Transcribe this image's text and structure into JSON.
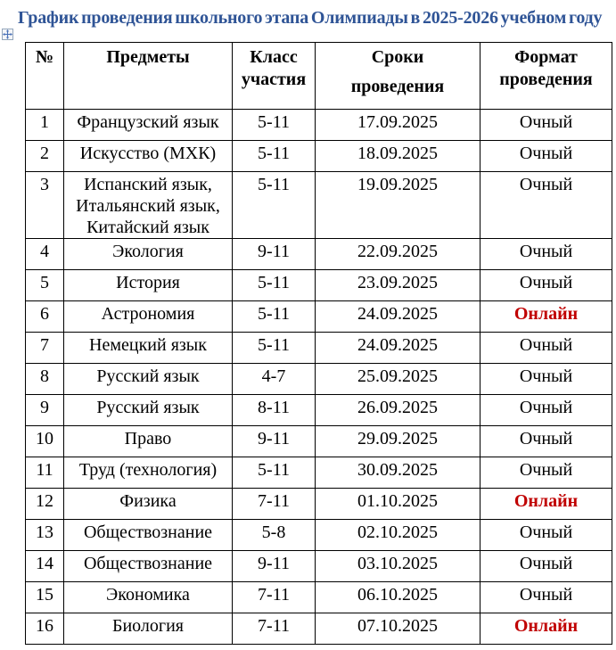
{
  "title": "График проведения школьного этапа Олимпиады в 2025-2026 учебном году",
  "colors": {
    "title_text": "#2F5496",
    "online_format": "#C00000",
    "table_border": "#000000"
  },
  "icons": {
    "table_move_handle": "four-way-move-arrows"
  },
  "table": {
    "headers": [
      "№",
      "Предметы",
      "Класс\nучастия",
      "Сроки\nпроведения",
      "Формат\nпроведения"
    ],
    "rows": [
      {
        "num": "1",
        "subject": "Французский язык",
        "grades": "5-11",
        "date": "17.09.2025",
        "format": "Очный",
        "online": false
      },
      {
        "num": "2",
        "subject": "Искусство (МХК)",
        "grades": "5-11",
        "date": "18.09.2025",
        "format": "Очный",
        "online": false
      },
      {
        "num": "3",
        "subject": "Испанский язык,\nИтальянский язык,\nКитайский язык",
        "grades": "5-11",
        "date": "19.09.2025",
        "format": "Очный",
        "online": false
      },
      {
        "num": "4",
        "subject": "Экология",
        "grades": "9-11",
        "date": "22.09.2025",
        "format": "Очный",
        "online": false
      },
      {
        "num": "5",
        "subject": "История",
        "grades": "5-11",
        "date": "23.09.2025",
        "format": "Очный",
        "online": false
      },
      {
        "num": "6",
        "subject": "Астрономия",
        "grades": "5-11",
        "date": "24.09.2025",
        "format": "Онлайн",
        "online": true
      },
      {
        "num": "7",
        "subject": "Немецкий язык",
        "grades": "5-11",
        "date": "24.09.2025",
        "format": "Очный",
        "online": false
      },
      {
        "num": "8",
        "subject": "Русский язык",
        "grades": "4-7",
        "date": "25.09.2025",
        "format": "Очный",
        "online": false
      },
      {
        "num": "9",
        "subject": "Русский язык",
        "grades": "8-11",
        "date": "26.09.2025",
        "format": "Очный",
        "online": false
      },
      {
        "num": "10",
        "subject": "Право",
        "grades": "9-11",
        "date": "29.09.2025",
        "format": "Очный",
        "online": false
      },
      {
        "num": "11",
        "subject": "Труд (технология)",
        "grades": "5-11",
        "date": "30.09.2025",
        "format": "Очный",
        "online": false
      },
      {
        "num": "12",
        "subject": "Физика",
        "grades": "7-11",
        "date": "01.10.2025",
        "format": "Онлайн",
        "online": true
      },
      {
        "num": "13",
        "subject": "Обществознание",
        "grades": "5-8",
        "date": "02.10.2025",
        "format": "Очный",
        "online": false
      },
      {
        "num": "14",
        "subject": "Обществознание",
        "grades": "9-11",
        "date": "03.10.2025",
        "format": "Очный",
        "online": false
      },
      {
        "num": "15",
        "subject": "Экономика",
        "grades": "7-11",
        "date": "06.10.2025",
        "format": "Очный",
        "online": false
      },
      {
        "num": "16",
        "subject": "Биология",
        "grades": "7-11",
        "date": "07.10.2025",
        "format": "Онлайн",
        "online": true
      }
    ]
  }
}
